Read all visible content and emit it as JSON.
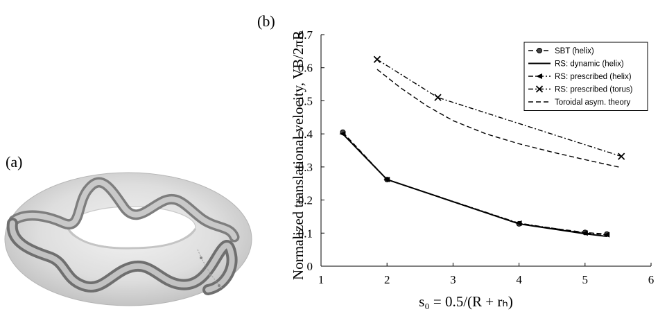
{
  "panel_a": {
    "label": "(a)"
  },
  "panel_b": {
    "label": "(b)"
  },
  "chart_data": {
    "type": "line",
    "xlabel": "s₀ = 0.5/(R + rₕ)",
    "ylabel": "Normalized translational velocity, VB/2πR",
    "xlim": [
      1,
      6
    ],
    "ylim": [
      0,
      0.7
    ],
    "xticks": [
      1,
      2,
      3,
      4,
      5,
      6
    ],
    "yticks": [
      0,
      0.1,
      0.2,
      0.3,
      0.4,
      0.5,
      0.6,
      0.7
    ],
    "grid": false,
    "legend_position": "top-right",
    "series": [
      {
        "name": "SBT (helix)",
        "style": "dashed",
        "marker": "circle",
        "x": [
          1.33,
          2.0,
          4.0,
          5.0,
          5.33
        ],
        "y": [
          0.405,
          0.262,
          0.128,
          0.102,
          0.097
        ]
      },
      {
        "name": "RS: dynamic (helix)",
        "style": "solid",
        "marker": "none",
        "x": [
          1.33,
          2.0,
          4.0,
          5.0,
          5.33
        ],
        "y": [
          0.4,
          0.262,
          0.128,
          0.098,
          0.09
        ]
      },
      {
        "name": "RS: prescribed (helix)",
        "style": "dashdot",
        "marker": "triangle-left",
        "x": [
          1.33,
          2.0,
          4.0,
          5.0,
          5.33
        ],
        "y": [
          0.4,
          0.262,
          0.13,
          0.1,
          0.095
        ]
      },
      {
        "name": "RS: prescribed (torus)",
        "style": "dashdot",
        "marker": "x",
        "x": [
          1.85,
          2.77,
          5.55
        ],
        "y": [
          0.625,
          0.51,
          0.332
        ]
      },
      {
        "name": "Toroidal asym. theory",
        "style": "dashed",
        "marker": "none",
        "x": [
          1.85,
          2.2,
          2.6,
          3.0,
          3.5,
          4.0,
          4.5,
          5.0,
          5.55
        ],
        "y": [
          0.595,
          0.54,
          0.485,
          0.44,
          0.4,
          0.37,
          0.345,
          0.322,
          0.298
        ]
      }
    ]
  }
}
